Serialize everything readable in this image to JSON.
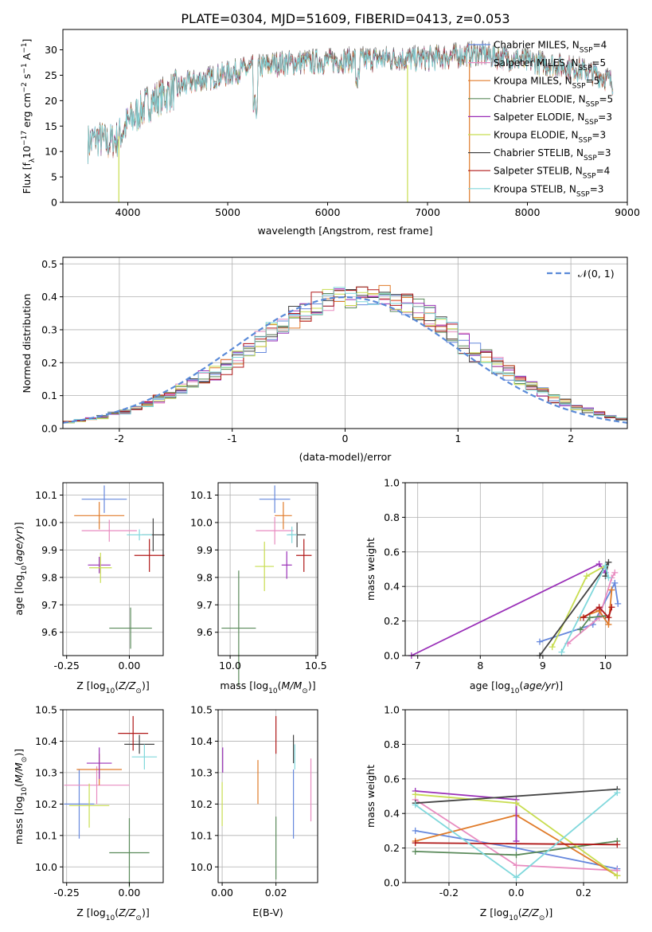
{
  "title": "PLATE=0304, MJD=51609, FIBERID=0413, z=0.053",
  "colors": {
    "chabrier_miles": "#6688dd",
    "salpeter_miles": "#e88cc0",
    "kroupa_miles": "#e07b2a",
    "chabrier_elodie": "#5a8a5a",
    "salpeter_elodie": "#9a30b8",
    "kroupa_elodie": "#c8dd50",
    "chabrier_stelib": "#444444",
    "salpeter_stelib": "#b01818",
    "kroupa_stelib": "#80d8dc",
    "normal_curve": "#5a8ad8"
  },
  "chart_data": [
    {
      "id": "spectrum",
      "type": "line",
      "xlabel": "wavelength [Angstrom, rest frame]",
      "ylabel": "Flux [f_λ10^-17 erg cm^-2 s^-1 A^-1]",
      "xlim": [
        3350,
        9000
      ],
      "ylim": [
        0,
        34
      ],
      "xticks": [
        4000,
        5000,
        6000,
        7000,
        8000,
        9000
      ],
      "yticks": [
        0,
        5,
        10,
        15,
        20,
        25,
        30
      ],
      "grid": false,
      "legend": "top-right",
      "legend_entries": [
        "Chabrier MILES, N_SSP=4",
        "Salpeter MILES, N_SSP=5",
        "Kroupa MILES, N_SSP=5",
        "Chabrier ELODIE, N_SSP=5",
        "Salpeter ELODIE, N_SSP=3",
        "Kroupa ELODIE, N_SSP=3",
        "Chabrier STELIB, N_SSP=3",
        "Salpeter STELIB, N_SSP=4",
        "Kroupa STELIB, N_SSP=3"
      ],
      "continuum": [
        [
          3600,
          12
        ],
        [
          3700,
          13
        ],
        [
          3800,
          12
        ],
        [
          3900,
          13
        ],
        [
          4000,
          16
        ],
        [
          4200,
          20
        ],
        [
          4400,
          22
        ],
        [
          4600,
          24
        ],
        [
          4800,
          25
        ],
        [
          5000,
          26
        ],
        [
          5200,
          27
        ],
        [
          5500,
          28
        ],
        [
          6000,
          28.5
        ],
        [
          6500,
          29
        ],
        [
          7000,
          29
        ],
        [
          7500,
          30
        ],
        [
          8000,
          28.5
        ],
        [
          8500,
          27
        ],
        [
          8800,
          25
        ],
        [
          8860,
          24
        ]
      ]
    },
    {
      "id": "residuals",
      "type": "line",
      "xlabel": "(data-model)/error",
      "ylabel": "Normed distribution",
      "xlim": [
        -2.5,
        2.5
      ],
      "ylim": [
        0,
        0.52
      ],
      "xticks": [
        -2,
        -1,
        0,
        1,
        2
      ],
      "yticks": [
        0.0,
        0.1,
        0.2,
        0.3,
        0.4,
        0.5
      ],
      "grid": true,
      "legend": "top-right",
      "legend_label": "𝒩(0, 1)",
      "bin_width": 0.1,
      "profile": [
        0.02,
        0.025,
        0.03,
        0.035,
        0.045,
        0.05,
        0.06,
        0.075,
        0.09,
        0.1,
        0.12,
        0.14,
        0.16,
        0.17,
        0.19,
        0.21,
        0.23,
        0.26,
        0.29,
        0.31,
        0.34,
        0.36,
        0.38,
        0.39,
        0.4,
        0.4,
        0.41,
        0.4,
        0.4,
        0.39,
        0.38,
        0.36,
        0.34,
        0.31,
        0.29,
        0.26,
        0.23,
        0.21,
        0.19,
        0.17,
        0.15,
        0.13,
        0.11,
        0.09,
        0.08,
        0.065,
        0.055,
        0.045,
        0.035,
        0.03
      ]
    },
    {
      "id": "z-age",
      "type": "scatter",
      "xlabel": "Z [log10(Z/Z⊙)]",
      "ylabel": "age  [log10(age/yr)]",
      "xlim": [
        -0.265,
        0.135
      ],
      "ylim": [
        9.515,
        10.145
      ],
      "xticks": [
        -0.25,
        0.0
      ],
      "yticks": [
        9.6,
        9.7,
        9.8,
        9.9,
        10.0,
        10.1
      ],
      "grid": true,
      "points": [
        {
          "c": "chabrier_miles",
          "x": -0.1,
          "xerr": 0.09,
          "y": 10.085,
          "yerr": 0.05
        },
        {
          "c": "salpeter_miles",
          "x": -0.08,
          "xerr": 0.11,
          "y": 9.97,
          "yerr": 0.04
        },
        {
          "c": "kroupa_miles",
          "x": -0.12,
          "xerr": 0.1,
          "y": 10.025,
          "yerr": 0.05
        },
        {
          "c": "chabrier_elodie",
          "x": 0.005,
          "xerr": 0.085,
          "y": 9.615,
          "yerr": 0.075
        },
        {
          "c": "salpeter_elodie",
          "x": -0.12,
          "xerr": 0.045,
          "y": 9.845,
          "yerr": 0.03
        },
        {
          "c": "kroupa_elodie",
          "x": -0.115,
          "xerr": 0.045,
          "y": 9.835,
          "yerr": 0.055
        },
        {
          "c": "chabrier_stelib",
          "x": 0.095,
          "xerr": 0.045,
          "y": 9.955,
          "yerr": 0.06
        },
        {
          "c": "salpeter_stelib",
          "x": 0.08,
          "xerr": 0.06,
          "y": 9.88,
          "yerr": 0.06
        },
        {
          "c": "kroupa_stelib",
          "x": 0.04,
          "xerr": 0.05,
          "y": 9.955,
          "yerr": 0.02
        }
      ]
    },
    {
      "id": "mass-age",
      "type": "scatter",
      "xlabel": "mass [log10(M/M⊙)]",
      "ylabel": "",
      "xlim": [
        9.93,
        10.51
      ],
      "ylim": [
        9.515,
        10.145
      ],
      "xticks": [
        10.0,
        10.5
      ],
      "yticks": [
        9.6,
        9.7,
        9.8,
        9.9,
        10.0,
        10.1
      ],
      "grid": true,
      "points": [
        {
          "c": "chabrier_miles",
          "x": 10.26,
          "xerr": 0.09,
          "y": 10.085,
          "yerr": 0.05
        },
        {
          "c": "salpeter_miles",
          "x": 10.26,
          "xerr": 0.11,
          "y": 9.97,
          "yerr": 0.05
        },
        {
          "c": "kroupa_miles",
          "x": 10.31,
          "xerr": 0.05,
          "y": 10.025,
          "yerr": 0.05
        },
        {
          "c": "chabrier_elodie",
          "x": 10.05,
          "xerr": 0.1,
          "y": 9.615,
          "yerr": 0.21
        },
        {
          "c": "salpeter_elodie",
          "x": 10.33,
          "xerr": 0.03,
          "y": 9.845,
          "yerr": 0.05
        },
        {
          "c": "kroupa_elodie",
          "x": 10.2,
          "xerr": 0.055,
          "y": 9.84,
          "yerr": 0.09
        },
        {
          "c": "chabrier_stelib",
          "x": 10.39,
          "xerr": 0.05,
          "y": 9.955,
          "yerr": 0.045
        },
        {
          "c": "salpeter_stelib",
          "x": 10.43,
          "xerr": 0.045,
          "y": 9.88,
          "yerr": 0.06
        },
        {
          "c": "kroupa_stelib",
          "x": 10.36,
          "xerr": 0.03,
          "y": 9.955,
          "yerr": 0.03
        }
      ]
    },
    {
      "id": "age-weight",
      "type": "line",
      "xlabel": "age  [log10(age/yr)]",
      "ylabel": "mass weight",
      "xlim": [
        6.8,
        10.35
      ],
      "ylim": [
        0.0,
        1.0
      ],
      "xticks": [
        7,
        8,
        9,
        10
      ],
      "yticks": [
        0.0,
        0.2,
        0.4,
        0.6,
        0.8,
        1.0
      ],
      "grid": true,
      "series": [
        {
          "c": "chabrier_miles",
          "pts": [
            [
              8.95,
              0.08
            ],
            [
              9.8,
              0.18
            ],
            [
              10.15,
              0.42
            ],
            [
              10.2,
              0.3
            ]
          ]
        },
        {
          "c": "salpeter_miles",
          "pts": [
            [
              9.4,
              0.07
            ],
            [
              9.9,
              0.22
            ],
            [
              10.1,
              0.45
            ],
            [
              10.15,
              0.48
            ]
          ]
        },
        {
          "c": "kroupa_miles",
          "pts": [
            [
              9.6,
              0.22
            ],
            [
              9.9,
              0.26
            ],
            [
              10.05,
              0.18
            ],
            [
              10.1,
              0.38
            ]
          ]
        },
        {
          "c": "chabrier_elodie",
          "pts": [
            [
              9.6,
              0.15
            ],
            [
              9.75,
              0.22
            ],
            [
              10.0,
              0.23
            ]
          ]
        },
        {
          "c": "salpeter_elodie",
          "pts": [
            [
              6.9,
              0.0
            ],
            [
              9.9,
              0.53
            ],
            [
              10.0,
              0.48
            ]
          ]
        },
        {
          "c": "kroupa_elodie",
          "pts": [
            [
              9.15,
              0.05
            ],
            [
              9.7,
              0.46
            ],
            [
              10.0,
              0.52
            ]
          ]
        },
        {
          "c": "chabrier_stelib",
          "pts": [
            [
              8.95,
              0.0
            ],
            [
              10.05,
              0.54
            ],
            [
              10.0,
              0.46
            ]
          ]
        },
        {
          "c": "salpeter_stelib",
          "pts": [
            [
              9.65,
              0.22
            ],
            [
              9.9,
              0.28
            ],
            [
              10.05,
              0.22
            ],
            [
              10.1,
              0.28
            ]
          ]
        },
        {
          "c": "kroupa_stelib",
          "pts": [
            [
              9.3,
              0.02
            ],
            [
              10.0,
              0.52
            ],
            [
              10.05,
              0.45
            ]
          ]
        }
      ]
    },
    {
      "id": "z-mass",
      "type": "scatter",
      "xlabel": "Z [log10(Z/Z⊙)]",
      "ylabel": "mass [log10(M/M⊙)]",
      "xlim": [
        -0.265,
        0.135
      ],
      "ylim": [
        9.95,
        10.5
      ],
      "xticks": [
        -0.25,
        0.0
      ],
      "yticks": [
        10.0,
        10.1,
        10.2,
        10.3,
        10.4,
        10.5
      ],
      "grid": true,
      "points": [
        {
          "c": "chabrier_miles",
          "x": -0.2,
          "xerr": 0.06,
          "y": 10.2,
          "yerr": 0.11
        },
        {
          "c": "salpeter_miles",
          "x": -0.13,
          "xerr": 0.13,
          "y": 10.26,
          "yerr": 0.06
        },
        {
          "c": "kroupa_miles",
          "x": -0.12,
          "xerr": 0.09,
          "y": 10.31,
          "yerr": 0.05
        },
        {
          "c": "chabrier_elodie",
          "x": 0.0,
          "xerr": 0.08,
          "y": 10.045,
          "yerr": 0.11
        },
        {
          "c": "salpeter_elodie",
          "x": -0.12,
          "xerr": 0.05,
          "y": 10.33,
          "yerr": 0.05
        },
        {
          "c": "kroupa_elodie",
          "x": -0.16,
          "xerr": 0.08,
          "y": 10.195,
          "yerr": 0.07
        },
        {
          "c": "chabrier_stelib",
          "x": 0.04,
          "xerr": 0.06,
          "y": 10.39,
          "yerr": 0.03
        },
        {
          "c": "salpeter_stelib",
          "x": 0.015,
          "xerr": 0.06,
          "y": 10.425,
          "yerr": 0.055
        },
        {
          "c": "kroupa_stelib",
          "x": 0.06,
          "xerr": 0.05,
          "y": 10.35,
          "yerr": 0.04
        }
      ]
    },
    {
      "id": "ebv-mass",
      "type": "scatter",
      "xlabel": "E(B-V)",
      "ylabel": "",
      "xlim": [
        -0.0015,
        0.0355
      ],
      "ylim": [
        9.95,
        10.5
      ],
      "xticks": [
        0.0,
        0.02
      ],
      "yticks": [
        10.0,
        10.1,
        10.2,
        10.3,
        10.4,
        10.5
      ],
      "grid": true,
      "points": [
        {
          "c": "chabrier_miles",
          "x": 0.0265,
          "xerr": 0,
          "y": 10.2,
          "yerr": 0.11
        },
        {
          "c": "salpeter_miles",
          "x": 0.033,
          "xerr": 0,
          "y": 10.245,
          "yerr": 0.1
        },
        {
          "c": "kroupa_miles",
          "x": 0.0133,
          "xerr": 0,
          "y": 10.27,
          "yerr": 0.07
        },
        {
          "c": "chabrier_elodie",
          "x": 0.02,
          "xerr": 0,
          "y": 10.06,
          "yerr": 0.1
        },
        {
          "c": "salpeter_elodie",
          "x": 0.0002,
          "xerr": 0,
          "y": 10.34,
          "yerr": 0.04
        },
        {
          "c": "kroupa_elodie",
          "x": 0.0,
          "xerr": 0,
          "y": 10.2,
          "yerr": 0.07
        },
        {
          "c": "chabrier_stelib",
          "x": 0.0265,
          "xerr": 0,
          "y": 10.375,
          "yerr": 0.045
        },
        {
          "c": "salpeter_stelib",
          "x": 0.02,
          "xerr": 0,
          "y": 10.42,
          "yerr": 0.06
        },
        {
          "c": "kroupa_stelib",
          "x": 0.027,
          "xerr": 0,
          "y": 10.35,
          "yerr": 0.04
        }
      ]
    },
    {
      "id": "z-weight",
      "type": "line",
      "xlabel": "Z [log10(Z/Z⊙)]",
      "ylabel": "mass weight",
      "xlim": [
        -0.33,
        0.33
      ],
      "ylim": [
        0.0,
        1.0
      ],
      "xticks": [
        -0.2,
        0.0,
        0.2
      ],
      "yticks": [
        0.0,
        0.2,
        0.4,
        0.6,
        0.8,
        1.0
      ],
      "grid": true,
      "series": [
        {
          "c": "chabrier_miles",
          "pts": [
            [
              -0.3,
              0.3
            ],
            [
              0.0,
              0.2
            ],
            [
              0.3,
              0.08
            ]
          ]
        },
        {
          "c": "salpeter_miles",
          "pts": [
            [
              -0.3,
              0.48
            ],
            [
              0.0,
              0.1
            ],
            [
              0.3,
              0.07
            ]
          ]
        },
        {
          "c": "kroupa_miles",
          "pts": [
            [
              -0.3,
              0.24
            ],
            [
              0.0,
              0.39
            ],
            [
              0.3,
              0.04
            ]
          ]
        },
        {
          "c": "chabrier_elodie",
          "pts": [
            [
              -0.3,
              0.18
            ],
            [
              0.0,
              0.16
            ],
            [
              0.3,
              0.24
            ]
          ]
        },
        {
          "c": "salpeter_elodie",
          "pts": [
            [
              -0.3,
              0.53
            ],
            [
              0.0,
              0.48
            ],
            [
              0.0,
              0.24
            ]
          ]
        },
        {
          "c": "kroupa_elodie",
          "pts": [
            [
              -0.3,
              0.51
            ],
            [
              0.0,
              0.46
            ],
            [
              0.3,
              0.04
            ]
          ]
        },
        {
          "c": "chabrier_stelib",
          "pts": [
            [
              -0.3,
              0.46
            ],
            [
              0.3,
              0.54
            ]
          ]
        },
        {
          "c": "salpeter_stelib",
          "pts": [
            [
              -0.3,
              0.23
            ],
            [
              0.3,
              0.22
            ]
          ]
        },
        {
          "c": "kroupa_stelib",
          "pts": [
            [
              -0.3,
              0.45
            ],
            [
              0.0,
              0.03
            ],
            [
              0.3,
              0.52
            ]
          ]
        }
      ]
    }
  ]
}
